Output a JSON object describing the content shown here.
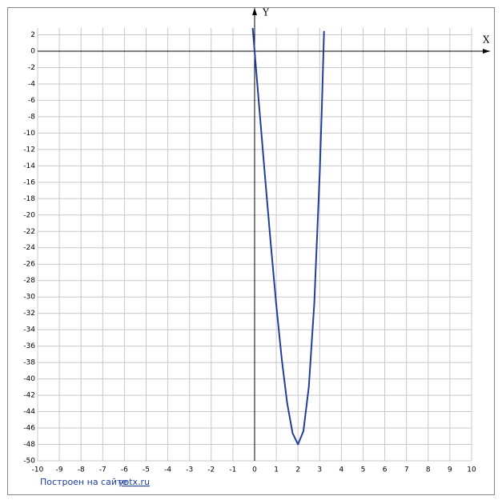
{
  "chart_data": {
    "type": "line",
    "x_label": "X",
    "y_label": "Y",
    "x": [
      -0.09,
      0,
      0.25,
      0.5,
      0.75,
      1,
      1.25,
      1.5,
      1.75,
      2,
      2.25,
      2.5,
      2.75,
      3,
      3.1,
      3.2
    ],
    "values": [
      2.88,
      0,
      -8.0,
      -15.94,
      -23.68,
      -31,
      -37.56,
      -42.94,
      -46.62,
      -48,
      -46.37,
      -40.94,
      -30.81,
      -15,
      -6.85,
      2.46
    ],
    "color": "#1f3f9f",
    "xlim": [
      -10,
      10
    ],
    "ylim": [
      -50,
      2.83
    ],
    "xticks": [
      -10,
      -9,
      -8,
      -7,
      -6,
      -5,
      -4,
      -3,
      -2,
      -1,
      0,
      1,
      2,
      3,
      4,
      5,
      6,
      7,
      8,
      9,
      10
    ],
    "yticks": [
      -50,
      -48,
      -46,
      -44,
      -42,
      -40,
      -38,
      -36,
      -34,
      -32,
      -30,
      -28,
      -26,
      -24,
      -22,
      -20,
      -18,
      -16,
      -14,
      -12,
      -10,
      -8,
      -6,
      -4,
      -2,
      0,
      2
    ],
    "grid": true
  },
  "footer": {
    "text": "Построен на сайте",
    "link": "yotx.ru"
  }
}
